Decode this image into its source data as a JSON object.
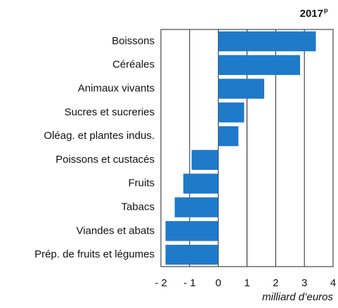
{
  "chart_data": {
    "type": "bar",
    "orientation": "horizontal",
    "title": "2017",
    "title_sup": "p",
    "x_label": "milliard d’euros",
    "categories": [
      "Boissons",
      "Céréales",
      "Animaux vivants",
      "Sucres et sucreries",
      "Oléag. et plantes indus.",
      "Poissons et custacés",
      "Fruits",
      "Tabacs",
      "Viandes et abats",
      "Prép. de fruits et légumes"
    ],
    "values": [
      3.4,
      2.85,
      1.6,
      0.9,
      0.7,
      -0.93,
      -1.22,
      -1.52,
      -1.84,
      -1.84
    ],
    "color": "#1f7ac9",
    "xlim": [
      -2,
      4
    ],
    "xticks": [
      {
        "value": -2,
        "label": "- 2"
      },
      {
        "value": -1,
        "label": "- 1"
      },
      0,
      1,
      2,
      3,
      4
    ],
    "grid": true
  }
}
